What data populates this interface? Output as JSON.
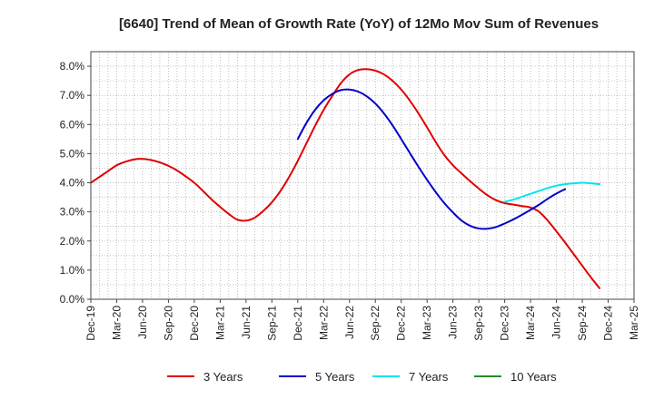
{
  "chart_data": {
    "type": "line",
    "title": "[6640]  Trend of Mean of Growth Rate (YoY) of 12Mo Mov Sum of Revenues",
    "xlabel": "",
    "ylabel": "",
    "ylim": [
      0,
      8.5
    ],
    "y_ticks": [
      0,
      1,
      2,
      3,
      4,
      5,
      6,
      7,
      8
    ],
    "y_tick_labels": [
      "0.0%",
      "1.0%",
      "2.0%",
      "3.0%",
      "4.0%",
      "5.0%",
      "6.0%",
      "7.0%",
      "8.0%"
    ],
    "x_tick_labels": [
      "Dec-19",
      "Mar-20",
      "Jun-20",
      "Sep-20",
      "Dec-20",
      "Mar-21",
      "Jun-21",
      "Sep-21",
      "Dec-21",
      "Mar-22",
      "Jun-22",
      "Sep-22",
      "Dec-22",
      "Mar-23",
      "Jun-23",
      "Sep-23",
      "Dec-23",
      "Mar-24",
      "Jun-24",
      "Sep-24",
      "Dec-24",
      "Mar-25"
    ],
    "x_month_range": [
      0,
      63
    ],
    "grid": true,
    "series": [
      {
        "name": "3 Years",
        "color": "#e00000",
        "start_month": 0,
        "values": [
          4.0,
          4.2,
          4.4,
          4.6,
          4.72,
          4.8,
          4.82,
          4.78,
          4.7,
          4.58,
          4.42,
          4.22,
          4.0,
          3.72,
          3.43,
          3.17,
          2.93,
          2.73,
          2.7,
          2.8,
          3.03,
          3.33,
          3.72,
          4.2,
          4.75,
          5.35,
          5.95,
          6.5,
          6.98,
          7.42,
          7.72,
          7.87,
          7.9,
          7.85,
          7.72,
          7.5,
          7.2,
          6.82,
          6.38,
          5.9,
          5.4,
          4.95,
          4.6,
          4.32,
          4.05,
          3.8,
          3.57,
          3.4,
          3.3,
          3.25,
          3.2,
          3.15,
          3.0,
          2.7,
          2.33,
          1.95,
          1.55,
          1.15,
          0.75,
          0.38
        ]
      },
      {
        "name": "5 Years",
        "color": "#0000cc",
        "start_month": 24,
        "values": [
          5.5,
          6.05,
          6.5,
          6.83,
          7.05,
          7.18,
          7.2,
          7.13,
          6.97,
          6.72,
          6.38,
          5.97,
          5.5,
          5.02,
          4.55,
          4.1,
          3.68,
          3.3,
          2.98,
          2.7,
          2.52,
          2.43,
          2.42,
          2.48,
          2.6,
          2.74,
          2.9,
          3.07,
          3.25,
          3.45,
          3.63,
          3.78
        ]
      },
      {
        "name": "7 Years",
        "color": "#00e5ee",
        "start_month": 48,
        "values": [
          3.35,
          3.42,
          3.52,
          3.62,
          3.72,
          3.82,
          3.9,
          3.95,
          3.98,
          4.0,
          3.98,
          3.95
        ]
      },
      {
        "name": "10 Years",
        "color": "#228b22",
        "start_month": 0,
        "values": []
      }
    ]
  }
}
